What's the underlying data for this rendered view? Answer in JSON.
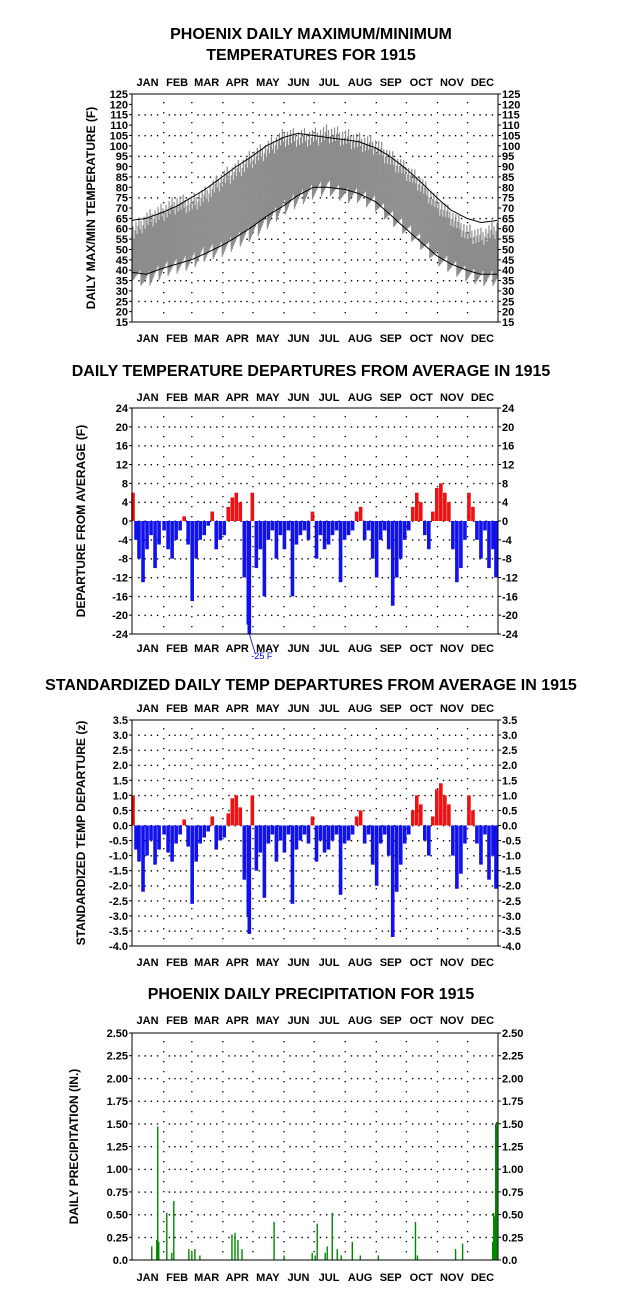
{
  "colors": {
    "range_fill": "#8c8c8c",
    "normal_line": "#000000",
    "positive": "#ee1111",
    "negative": "#1111ee",
    "precip": "#008800",
    "annotation": "#0000cc"
  },
  "months": [
    "JAN",
    "FEB",
    "MAR",
    "APR",
    "MAY",
    "JUN",
    "JUL",
    "AUG",
    "SEP",
    "OCT",
    "NOV",
    "DEC"
  ],
  "chart_data": [
    {
      "id": "temps",
      "type": "area",
      "title_lines": [
        "PHOENIX DAILY MAXIMUM/MINIMUM",
        "TEMPERATURES FOR 1915"
      ],
      "ylabel": "DAILY MAX/MIN TEMPERATURE (F)",
      "ylim": [
        15,
        125
      ],
      "yticks": [
        15,
        20,
        25,
        30,
        35,
        40,
        45,
        50,
        55,
        60,
        65,
        70,
        75,
        80,
        85,
        90,
        95,
        100,
        105,
        110,
        115,
        120,
        125
      ],
      "grid": true,
      "series": [
        {
          "kind": "band",
          "day": [
            1,
            15,
            32,
            46,
            60,
            74,
            91,
            105,
            121,
            135,
            152,
            166,
            182,
            196,
            213,
            227,
            244,
            258,
            274,
            288,
            305,
            319,
            335,
            349,
            365
          ],
          "low": [
            38,
            35,
            40,
            42,
            44,
            48,
            50,
            54,
            58,
            63,
            70,
            74,
            78,
            80,
            76,
            76,
            72,
            66,
            60,
            54,
            46,
            42,
            38,
            36,
            36
          ],
          "high": [
            58,
            64,
            68,
            72,
            72,
            76,
            84,
            88,
            94,
            98,
            104,
            104,
            104,
            106,
            104,
            102,
            100,
            94,
            88,
            82,
            72,
            66,
            58,
            56,
            60
          ]
        },
        {
          "name": "",
          "kind": "normal",
          "day": [
            1,
            15,
            32,
            46,
            60,
            74,
            91,
            105,
            121,
            135,
            152,
            166,
            182,
            196,
            213,
            227,
            244,
            258,
            274,
            288,
            305,
            319,
            335,
            349,
            365
          ],
          "values": [
            64,
            65,
            68,
            71,
            75,
            79,
            85,
            90,
            95,
            100,
            104,
            106,
            105,
            104,
            103,
            102,
            99,
            95,
            89,
            83,
            75,
            69,
            65,
            63,
            64
          ]
        },
        {
          "name": "",
          "kind": "normal",
          "day": [
            1,
            15,
            32,
            46,
            60,
            74,
            91,
            105,
            121,
            135,
            152,
            166,
            182,
            196,
            213,
            227,
            244,
            258,
            274,
            288,
            305,
            319,
            335,
            349,
            365
          ],
          "values": [
            39,
            38,
            41,
            43,
            45,
            48,
            52,
            56,
            61,
            66,
            71,
            76,
            80,
            80,
            79,
            77,
            73,
            67,
            60,
            54,
            47,
            43,
            40,
            38,
            38
          ]
        }
      ]
    },
    {
      "id": "departures",
      "type": "bar",
      "title_lines": [
        "DAILY TEMPERATURE DEPARTURES FROM AVERAGE IN 1915"
      ],
      "ylabel": "DEPARTURE FROM AVERAGE (F)",
      "ylim": [
        -24,
        24
      ],
      "yticks": [
        -24,
        -20,
        -16,
        -12,
        -8,
        -4,
        0,
        4,
        8,
        12,
        16,
        20,
        24
      ],
      "grid": true,
      "annotation": "-25 F",
      "annotation_day": 118,
      "annotation_value": -25,
      "day": [
        2,
        5,
        8,
        12,
        16,
        20,
        24,
        28,
        33,
        37,
        41,
        45,
        49,
        53,
        57,
        61,
        65,
        69,
        73,
        77,
        81,
        85,
        89,
        93,
        97,
        101,
        105,
        109,
        113,
        117,
        118,
        121,
        125,
        129,
        133,
        137,
        141,
        145,
        149,
        153,
        157,
        161,
        165,
        169,
        173,
        177,
        181,
        185,
        189,
        193,
        197,
        201,
        205,
        209,
        213,
        217,
        221,
        225,
        229,
        233,
        237,
        241,
        245,
        249,
        253,
        257,
        261,
        265,
        269,
        273,
        277,
        281,
        285,
        289,
        293,
        297,
        301,
        305,
        309,
        313,
        317,
        321,
        325,
        329,
        333,
        337,
        341,
        345,
        349,
        353,
        357,
        361,
        364
      ],
      "values": [
        6,
        -4,
        -8,
        -13,
        -6,
        -3,
        -10,
        -5,
        -2,
        -6,
        -8,
        -4,
        -2,
        1,
        -5,
        -17,
        -8,
        -4,
        -3,
        -1,
        2,
        -6,
        -4,
        -3,
        3,
        5,
        6,
        4,
        -12,
        -22,
        -25,
        6,
        -10,
        -6,
        -16,
        -4,
        -2,
        -8,
        -3,
        -6,
        -2,
        -16,
        -5,
        -3,
        -2,
        -4,
        2,
        -8,
        -3,
        -6,
        -5,
        -3,
        -2,
        -13,
        -4,
        -3,
        -2,
        2,
        3,
        -4,
        -2,
        -8,
        -12,
        -4,
        -2,
        -6,
        -18,
        -12,
        -8,
        -4,
        -2,
        3,
        6,
        4,
        -3,
        -6,
        2,
        7,
        8,
        6,
        4,
        -6,
        -13,
        -10,
        -4,
        6,
        3,
        -4,
        -8,
        -2,
        -10,
        -6,
        -12
      ]
    },
    {
      "id": "standardized",
      "type": "bar",
      "title_lines": [
        "STANDARDIZED DAILY TEMP DEPARTURES FROM AVERAGE IN 1915"
      ],
      "ylabel": "STANDARDIZED TEMP DEPARTURE (z)",
      "ylim": [
        -4.0,
        3.5
      ],
      "yticks": [
        -4.0,
        -3.5,
        -3.0,
        -2.5,
        -2.0,
        -1.5,
        -1.0,
        -0.5,
        0.0,
        0.5,
        1.0,
        1.5,
        2.0,
        2.5,
        3.0,
        3.5
      ],
      "grid": true,
      "day": [
        2,
        5,
        8,
        12,
        16,
        20,
        24,
        28,
        33,
        37,
        41,
        45,
        49,
        53,
        57,
        61,
        65,
        69,
        73,
        77,
        81,
        85,
        89,
        93,
        97,
        101,
        105,
        109,
        113,
        117,
        118,
        121,
        125,
        129,
        133,
        137,
        141,
        145,
        149,
        153,
        157,
        161,
        165,
        169,
        173,
        177,
        181,
        185,
        189,
        193,
        197,
        201,
        205,
        209,
        213,
        217,
        221,
        225,
        229,
        233,
        237,
        241,
        245,
        249,
        253,
        257,
        261,
        265,
        269,
        273,
        277,
        281,
        285,
        289,
        293,
        297,
        301,
        305,
        309,
        313,
        317,
        321,
        325,
        329,
        333,
        337,
        341,
        345,
        349,
        353,
        357,
        361,
        364
      ],
      "values": [
        1.0,
        -0.8,
        -1.2,
        -2.2,
        -1.0,
        -0.5,
        -1.3,
        -0.8,
        -0.3,
        -0.9,
        -1.2,
        -0.6,
        -0.3,
        0.2,
        -0.7,
        -2.6,
        -1.2,
        -0.6,
        -0.4,
        -0.2,
        0.3,
        -0.8,
        -0.5,
        -0.4,
        0.4,
        0.9,
        1.0,
        0.6,
        -1.8,
        -3.0,
        -3.6,
        1.0,
        -1.5,
        -0.9,
        -2.4,
        -0.6,
        -0.3,
        -1.2,
        -0.5,
        -0.9,
        -0.3,
        -2.6,
        -0.8,
        -0.5,
        -0.3,
        -0.6,
        0.3,
        -1.2,
        -0.5,
        -0.9,
        -0.8,
        -0.5,
        -0.3,
        -2.3,
        -0.6,
        -0.5,
        -0.3,
        0.3,
        0.5,
        -0.6,
        -0.3,
        -1.3,
        -2.0,
        -0.6,
        -0.3,
        -1.0,
        -3.7,
        -2.2,
        -1.3,
        -0.6,
        -0.3,
        0.5,
        1.0,
        0.7,
        -0.5,
        -1.0,
        0.3,
        1.2,
        1.4,
        1.0,
        0.7,
        -1.0,
        -2.1,
        -1.6,
        -0.6,
        1.0,
        0.5,
        -0.6,
        -1.3,
        -0.3,
        -1.8,
        -1.0,
        -2.1
      ]
    },
    {
      "id": "precip",
      "type": "bar",
      "title_lines": [
        "PHOENIX DAILY PRECIPITATION FOR 1915"
      ],
      "ylabel": "DAILY PRECIPITATION (IN.)",
      "ylim": [
        0,
        2.5
      ],
      "yticks": [
        "0.0",
        "0.25",
        "0.50",
        "0.75",
        "1.00",
        "1.25",
        "1.50",
        "1.75",
        "2.00",
        "2.25",
        "2.50"
      ],
      "ytick_values": [
        0,
        0.25,
        0.5,
        0.75,
        1.0,
        1.25,
        1.5,
        1.75,
        2.0,
        2.25,
        2.5
      ],
      "grid": true,
      "day": [
        20,
        25,
        26,
        27,
        35,
        40,
        42,
        57,
        60,
        63,
        68,
        100,
        103,
        106,
        110,
        142,
        152,
        180,
        183,
        185,
        193,
        195,
        200,
        205,
        209,
        220,
        228,
        246,
        283,
        285,
        323,
        330,
        360,
        361,
        362,
        363,
        364
      ],
      "values": [
        0.15,
        0.22,
        1.47,
        0.2,
        0.52,
        0.08,
        0.65,
        0.12,
        0.08,
        0.12,
        0.05,
        0.28,
        0.3,
        0.22,
        0.12,
        0.42,
        0.05,
        0.08,
        0.05,
        0.4,
        0.08,
        0.15,
        0.52,
        0.12,
        0.05,
        0.2,
        0.05,
        0.05,
        0.42,
        0.05,
        0.12,
        0.18,
        0.2,
        0.52,
        0.48,
        1.5,
        1.52
      ]
    }
  ]
}
